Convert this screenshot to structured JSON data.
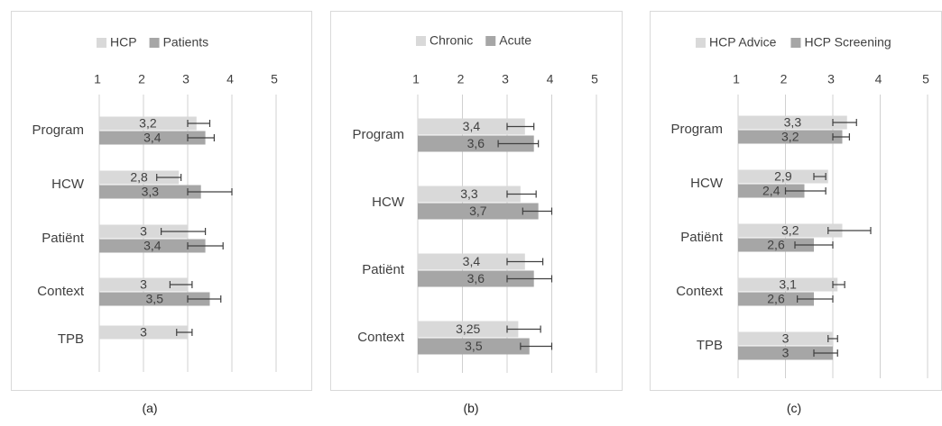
{
  "figure": {
    "panel_labels": [
      "(a)",
      "(b)",
      "(c)"
    ]
  },
  "colors": {
    "series1": "#d9d9d9",
    "series2": "#a6a6a6",
    "gridline": "#d0d0d0",
    "text": "#404040",
    "frame": "#d9d9d9",
    "errorbar": "#404040"
  },
  "chart_data": [
    {
      "type": "bar",
      "orientation": "horizontal",
      "categories": [
        "Program",
        "HCW",
        "Patiënt",
        "Context",
        "TPB"
      ],
      "xlim": [
        1,
        5
      ],
      "xticks": [
        "1",
        "2",
        "3",
        "4",
        "5"
      ],
      "grid": true,
      "legend_position": "top",
      "series": [
        {
          "name": "HCP",
          "values": [
            3.2,
            2.8,
            3,
            3,
            3
          ],
          "labels": [
            "3,2",
            "2,8",
            "3",
            "3",
            "3"
          ],
          "error_low": [
            3.0,
            2.3,
            2.4,
            2.6,
            2.75
          ],
          "error_high": [
            3.5,
            2.85,
            3.4,
            3.1,
            3.1
          ]
        },
        {
          "name": "Patients",
          "values": [
            3.4,
            3.3,
            3.4,
            3.5,
            null
          ],
          "labels": [
            "3,4",
            "3,3",
            "3,4",
            "3,5",
            ""
          ],
          "error_low": [
            3.0,
            3.0,
            3.0,
            3.0,
            null
          ],
          "error_high": [
            3.6,
            4.0,
            3.8,
            3.75,
            null
          ]
        }
      ]
    },
    {
      "type": "bar",
      "orientation": "horizontal",
      "categories": [
        "Program",
        "HCW",
        "Patiënt",
        "Context"
      ],
      "xlim": [
        1,
        5
      ],
      "xticks": [
        "1",
        "2",
        "3",
        "4",
        "5"
      ],
      "grid": true,
      "legend_position": "top",
      "series": [
        {
          "name": "Chronic",
          "values": [
            3.4,
            3.3,
            3.4,
            3.25
          ],
          "labels": [
            "3,4",
            "3,3",
            "3,4",
            "3,25"
          ],
          "error_low": [
            3.0,
            3.0,
            3.0,
            3.0
          ],
          "error_high": [
            3.6,
            3.65,
            3.8,
            3.75
          ]
        },
        {
          "name": "Acute",
          "values": [
            3.6,
            3.7,
            3.6,
            3.5
          ],
          "labels": [
            "3,6",
            "3,7",
            "3,6",
            "3,5"
          ],
          "error_low": [
            2.8,
            3.35,
            3.0,
            3.3
          ],
          "error_high": [
            3.7,
            4.0,
            4.0,
            4.0
          ]
        }
      ]
    },
    {
      "type": "bar",
      "orientation": "horizontal",
      "categories": [
        "Program",
        "HCW",
        "Patiënt",
        "Context",
        "TPB"
      ],
      "xlim": [
        1,
        5
      ],
      "xticks": [
        "1",
        "2",
        "3",
        "4",
        "5"
      ],
      "grid": true,
      "legend_position": "top",
      "series": [
        {
          "name": "HCP Advice",
          "values": [
            3.3,
            2.9,
            3.2,
            3.1,
            3
          ],
          "labels": [
            "3,3",
            "2,9",
            "3,2",
            "3,1",
            "3"
          ],
          "error_low": [
            3.0,
            2.6,
            2.9,
            3.0,
            2.9
          ],
          "error_high": [
            3.5,
            2.85,
            3.8,
            3.25,
            3.1
          ]
        },
        {
          "name": "HCP Screening",
          "values": [
            3.2,
            2.4,
            2.6,
            2.6,
            3
          ],
          "labels": [
            "3,2",
            "2,4",
            "2,6",
            "2,6",
            "3"
          ],
          "error_low": [
            3.0,
            2.0,
            2.2,
            2.25,
            2.6
          ],
          "error_high": [
            3.35,
            2.85,
            3.0,
            3.0,
            3.1
          ]
        }
      ]
    }
  ]
}
